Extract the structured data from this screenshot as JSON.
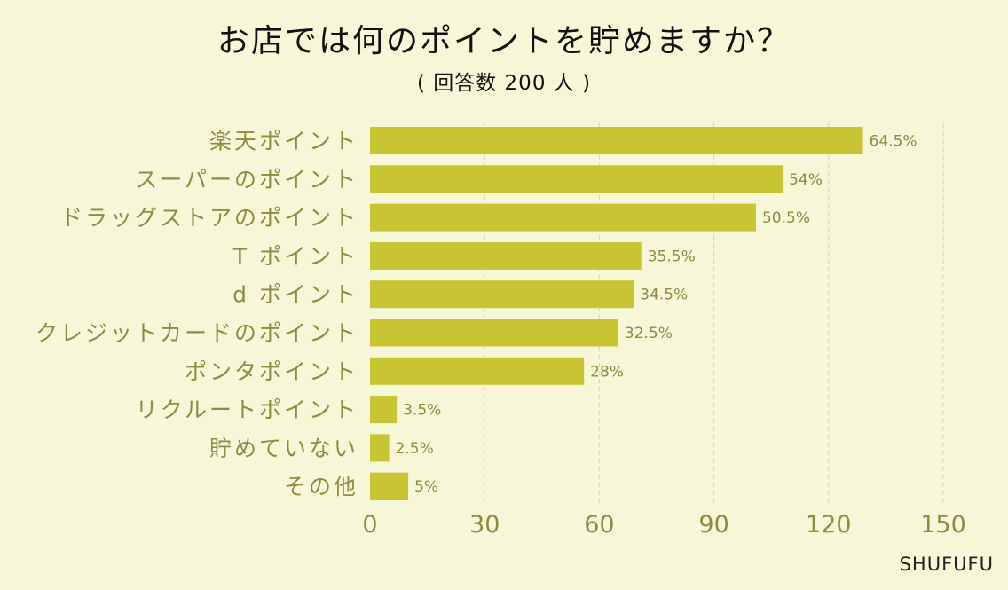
{
  "colors": {
    "background": "#f7f6d6",
    "bar": "#c9c431",
    "label": "#8d8c3f",
    "title": "#111111"
  },
  "brand": "SHUFUFU",
  "chart_data": {
    "type": "bar",
    "orientation": "horizontal",
    "title": "お店では何のポイントを貯めますか？",
    "subtitle": "( 回答数 200 人 )",
    "categories": [
      "楽天ポイント",
      "スーパーのポイント",
      "ドラッグストアのポイント",
      "T ポイント",
      "d ポイント",
      "クレジットカードのポイント",
      "ポンタポイント",
      "リクルートポイント",
      "貯めていない",
      "その他"
    ],
    "values": [
      129,
      108,
      101,
      71,
      69,
      65,
      56,
      7,
      5,
      10
    ],
    "value_labels": [
      "64.5%",
      "54%",
      "50.5%",
      "35.5%",
      "34.5%",
      "32.5%",
      "28%",
      "3.5%",
      "2.5%",
      "5%"
    ],
    "xlim": [
      0,
      150
    ],
    "xticks": [
      0,
      30,
      60,
      90,
      120,
      150
    ],
    "xtick_labels": [
      "0",
      "30",
      "60",
      "90",
      "120",
      "150"
    ],
    "grid": true,
    "legend": false
  }
}
